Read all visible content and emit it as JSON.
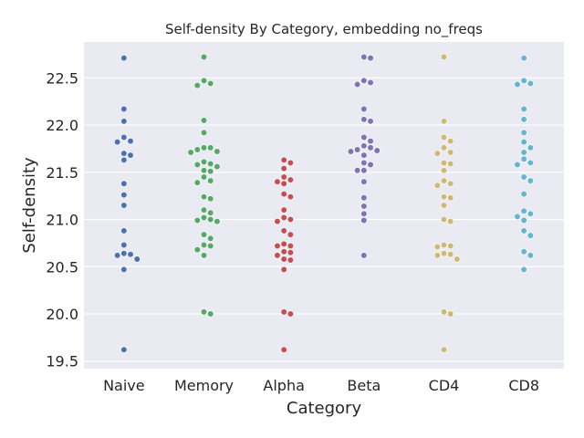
{
  "chart_data": {
    "type": "scatter",
    "subtype": "swarm",
    "title": "Self-density By Category, embedding no_freqs",
    "xlabel": "Category",
    "ylabel": "Self-density",
    "ylim": [
      19.42,
      22.88
    ],
    "yticks": [
      19.5,
      20.0,
      20.5,
      21.0,
      21.5,
      22.0,
      22.5
    ],
    "ytick_labels": [
      "19.5",
      "20.0",
      "20.5",
      "21.0",
      "21.5",
      "22.0",
      "22.5"
    ],
    "grid": true,
    "background": "#EAEAF2",
    "categories": [
      "Naive",
      "Memory",
      "Alpha",
      "Beta",
      "CD4",
      "CD8"
    ],
    "colors": [
      "#4C72B0",
      "#55A868",
      "#C44E52",
      "#8172B2",
      "#CCB974",
      "#64B5CD"
    ],
    "series": [
      {
        "values": [
          22.71,
          22.17,
          22.04,
          21.87,
          21.83,
          21.82,
          21.7,
          21.68,
          21.63,
          21.38,
          21.26,
          21.15,
          20.88,
          20.73,
          20.64,
          20.63,
          20.62,
          20.58,
          20.47,
          19.62
        ]
      },
      {
        "values": [
          22.72,
          22.47,
          22.44,
          22.42,
          22.05,
          21.92,
          21.76,
          21.76,
          21.74,
          21.72,
          21.71,
          21.61,
          21.59,
          21.58,
          21.56,
          21.52,
          21.51,
          21.45,
          21.41,
          21.39,
          21.24,
          21.22,
          21.1,
          21.07,
          21.02,
          21.0,
          20.99,
          20.98,
          20.84,
          20.8,
          20.73,
          20.72,
          20.68,
          20.62,
          20.02,
          20.0
        ]
      },
      {
        "values": [
          21.63,
          21.6,
          21.54,
          21.45,
          21.42,
          21.4,
          21.38,
          21.27,
          21.24,
          21.1,
          21.02,
          21.0,
          20.98,
          20.88,
          20.84,
          20.74,
          20.72,
          20.72,
          20.66,
          20.65,
          20.62,
          20.58,
          20.57,
          20.47,
          20.02,
          20.0,
          19.62
        ]
      },
      {
        "values": [
          22.72,
          22.71,
          22.47,
          22.45,
          22.43,
          22.17,
          22.06,
          22.04,
          21.87,
          21.83,
          21.78,
          21.76,
          21.74,
          21.73,
          21.72,
          21.68,
          21.6,
          21.58,
          21.52,
          21.52,
          21.4,
          21.23,
          21.14,
          21.06,
          20.99,
          20.62
        ]
      },
      {
        "values": [
          22.72,
          22.04,
          21.87,
          21.83,
          21.76,
          21.71,
          21.7,
          21.6,
          21.59,
          21.52,
          21.41,
          21.38,
          21.36,
          21.24,
          21.23,
          21.15,
          21.0,
          20.98,
          20.73,
          20.72,
          20.71,
          20.64,
          20.63,
          20.62,
          20.58,
          20.02,
          20.0,
          19.62
        ]
      },
      {
        "values": [
          22.71,
          22.47,
          22.44,
          22.43,
          22.17,
          22.06,
          21.92,
          21.82,
          21.76,
          21.71,
          21.64,
          21.6,
          21.58,
          21.45,
          21.41,
          21.27,
          21.09,
          21.06,
          21.03,
          20.99,
          20.88,
          20.83,
          20.66,
          20.62,
          20.47
        ]
      }
    ]
  }
}
